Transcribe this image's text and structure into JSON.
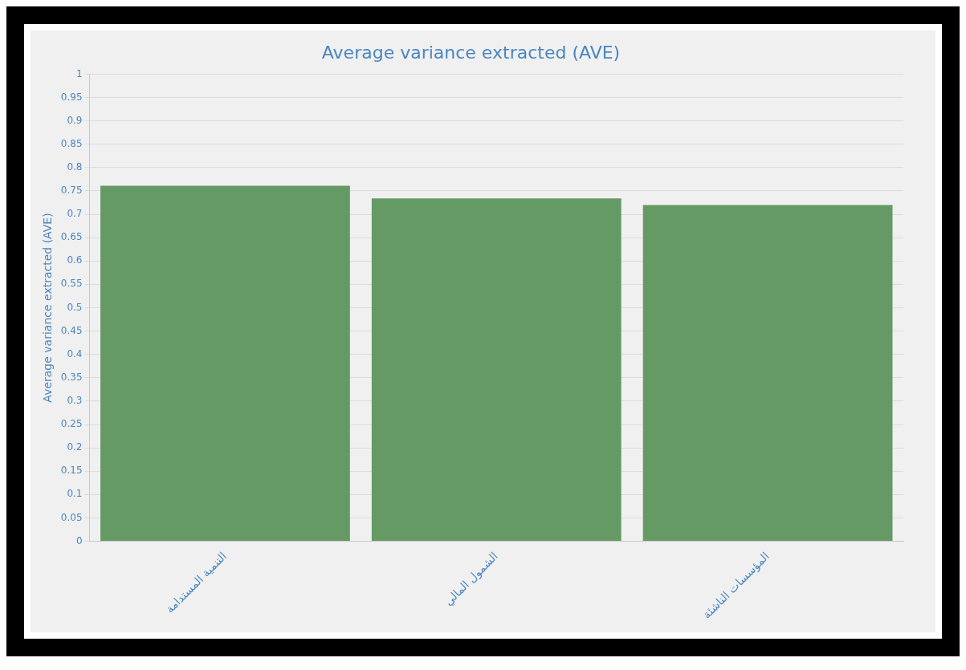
{
  "chart_data": {
    "type": "bar",
    "title": "Average variance extracted (AVE)",
    "ylabel": "Average variance extracted (AVE)",
    "categories": [
      "التنمية المستدامة",
      "الشمول المالي",
      "المؤسسات الناشئة"
    ],
    "values": [
      0.761,
      0.734,
      0.72
    ],
    "color": "#659a65",
    "ylim": [
      0,
      1
    ],
    "yticks": [
      0,
      0.05,
      0.1,
      0.15,
      0.2,
      0.25,
      0.3,
      0.35,
      0.4,
      0.45,
      0.5,
      0.55,
      0.6,
      0.65,
      0.7,
      0.75,
      0.8,
      0.85,
      0.9,
      0.95,
      1
    ],
    "grid": "y"
  }
}
